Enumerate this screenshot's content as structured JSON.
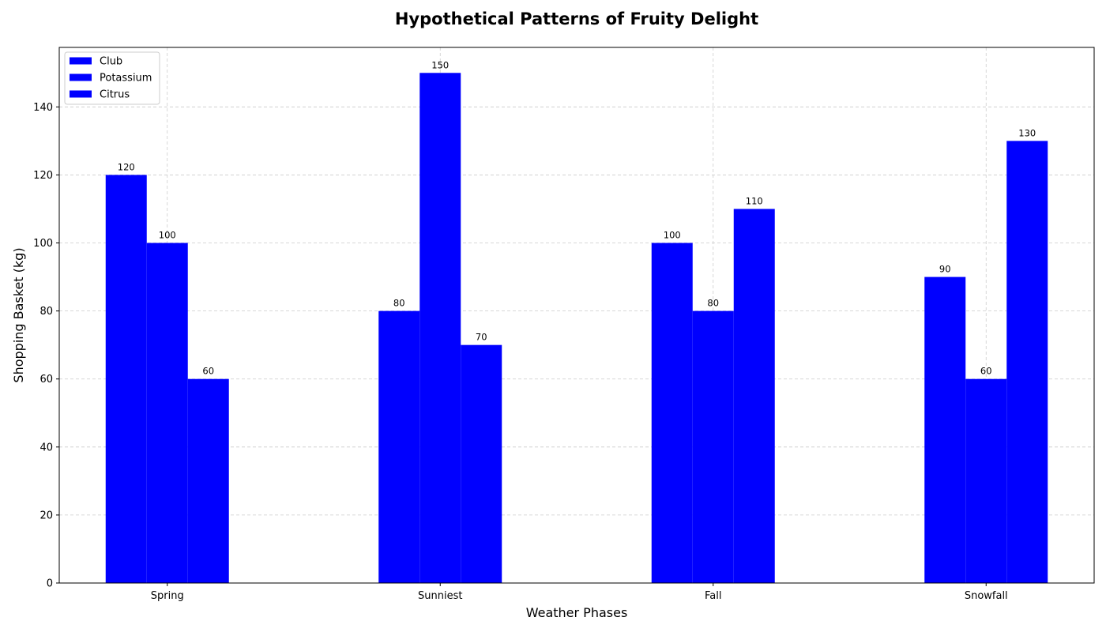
{
  "chart_data": {
    "type": "bar",
    "title": "Hypothetical Patterns of Fruity Delight",
    "xlabel": "Weather Phases",
    "ylabel": "Shopping Basket (kg)",
    "categories": [
      "Spring",
      "Sunniest",
      "Fall",
      "Snowfall"
    ],
    "series": [
      {
        "name": "Club",
        "values": [
          120,
          80,
          100,
          90
        ],
        "color": "#0000ff"
      },
      {
        "name": "Potassium",
        "values": [
          100,
          150,
          80,
          60
        ],
        "color": "#0000ff"
      },
      {
        "name": "Citrus",
        "values": [
          60,
          70,
          110,
          130
        ],
        "color": "#0000ff"
      }
    ],
    "ylim": [
      0,
      157.5
    ],
    "yticks": [
      0,
      20,
      40,
      60,
      80,
      100,
      120,
      140
    ],
    "grid": true,
    "grid_style": "dashed",
    "legend_position": "top-left",
    "data_labels": true
  }
}
